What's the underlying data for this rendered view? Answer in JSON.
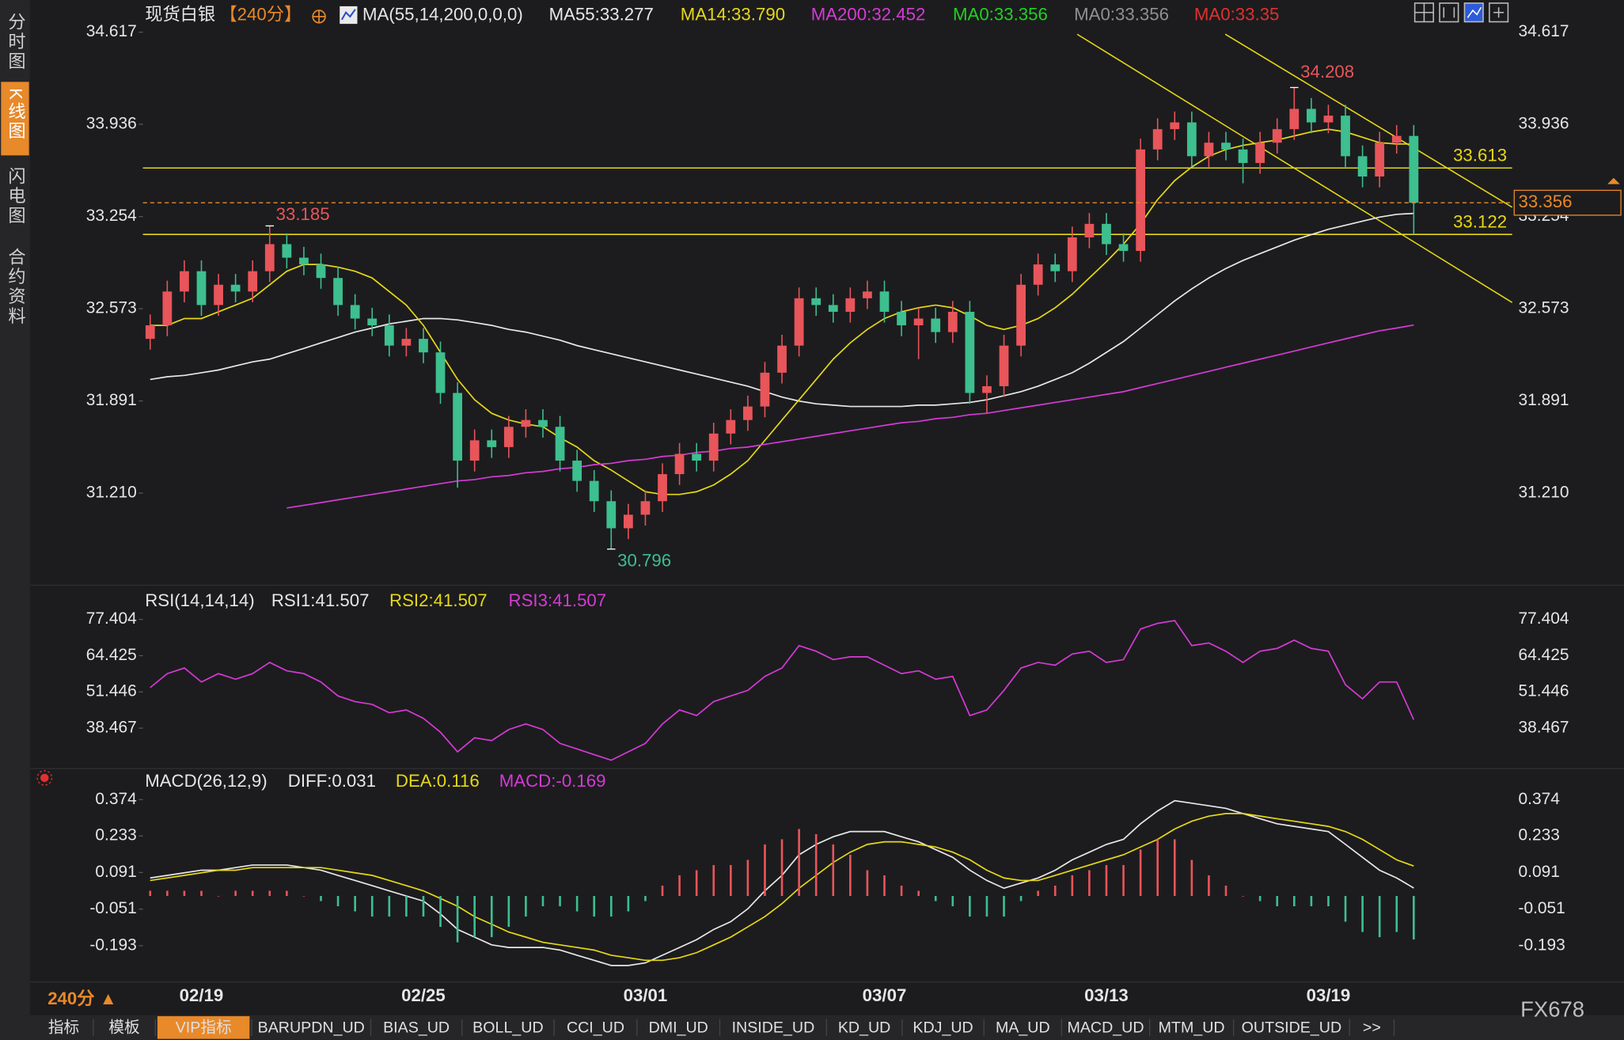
{
  "chart_data": [
    {
      "type": "candlestick",
      "title": "现货白银",
      "period": "【240分】",
      "indicator": "MA(55,14,200,0,0,0)",
      "categories": [
        null,
        null,
        null,
        "02/19",
        null,
        null,
        null,
        null,
        null,
        null,
        null,
        null,
        null,
        null,
        null,
        null,
        "02/25",
        null,
        null,
        null,
        null,
        null,
        null,
        null,
        null,
        null,
        null,
        null,
        null,
        "03/01",
        null,
        null,
        null,
        null,
        null,
        null,
        null,
        null,
        null,
        null,
        null,
        null,
        null,
        "03/07",
        null,
        null,
        null,
        null,
        null,
        null,
        null,
        null,
        null,
        null,
        null,
        null,
        "03/13",
        null,
        null,
        null,
        null,
        null,
        null,
        null,
        null,
        null,
        null,
        null,
        null,
        "03/19",
        null,
        null,
        null,
        null,
        null
      ],
      "open": [
        32.35,
        32.45,
        32.7,
        32.85,
        32.6,
        32.75,
        32.7,
        32.85,
        33.05,
        32.95,
        32.9,
        32.8,
        32.6,
        32.5,
        32.45,
        32.3,
        32.35,
        32.25,
        31.95,
        31.45,
        31.6,
        31.55,
        31.7,
        31.75,
        31.7,
        31.45,
        31.3,
        31.15,
        30.95,
        31.05,
        31.15,
        31.35,
        31.5,
        31.45,
        31.65,
        31.75,
        31.85,
        32.1,
        32.3,
        32.65,
        32.6,
        32.55,
        32.65,
        32.7,
        32.55,
        32.45,
        32.5,
        32.4,
        32.55,
        31.95,
        32.0,
        32.3,
        32.75,
        32.9,
        32.85,
        33.1,
        33.2,
        33.05,
        33.0,
        33.75,
        33.9,
        33.95,
        33.7,
        33.8,
        33.75,
        33.65,
        33.8,
        33.9,
        34.05,
        33.95,
        34.0,
        33.7,
        33.55,
        33.8,
        33.85
      ],
      "high": [
        32.53,
        32.78,
        32.93,
        32.93,
        32.83,
        32.83,
        32.93,
        33.185,
        33.13,
        33.03,
        32.98,
        32.88,
        32.68,
        32.58,
        32.53,
        32.43,
        32.43,
        32.33,
        32.03,
        31.68,
        31.68,
        31.78,
        31.83,
        31.83,
        31.78,
        31.53,
        31.38,
        31.23,
        31.13,
        31.23,
        31.43,
        31.58,
        31.58,
        31.73,
        31.83,
        31.93,
        32.18,
        32.38,
        32.73,
        32.73,
        32.68,
        32.73,
        32.78,
        32.78,
        32.63,
        32.58,
        32.58,
        32.63,
        32.63,
        32.08,
        32.38,
        32.83,
        32.98,
        32.98,
        33.18,
        33.28,
        33.28,
        33.13,
        33.83,
        33.98,
        34.03,
        34.03,
        33.88,
        33.88,
        33.83,
        33.88,
        33.98,
        34.208,
        34.13,
        34.08,
        34.08,
        33.78,
        33.88,
        33.93,
        33.93
      ],
      "low": [
        32.27,
        32.37,
        32.62,
        32.52,
        32.52,
        32.62,
        32.62,
        32.77,
        32.87,
        32.82,
        32.72,
        32.52,
        32.42,
        32.37,
        32.22,
        32.22,
        32.17,
        31.87,
        31.25,
        31.37,
        31.47,
        31.47,
        31.62,
        31.62,
        31.37,
        31.22,
        31.07,
        30.796,
        30.87,
        30.97,
        31.07,
        31.27,
        31.37,
        31.37,
        31.57,
        31.67,
        31.77,
        32.02,
        32.22,
        32.52,
        32.47,
        32.47,
        32.57,
        32.47,
        32.37,
        32.2,
        32.32,
        32.32,
        31.87,
        31.8,
        31.92,
        32.22,
        32.67,
        32.77,
        32.77,
        33.02,
        32.97,
        32.92,
        32.92,
        33.67,
        33.82,
        33.62,
        33.62,
        33.67,
        33.5,
        33.57,
        33.72,
        33.82,
        33.87,
        33.87,
        33.62,
        33.47,
        33.47,
        33.72,
        33.122
      ],
      "close": [
        32.45,
        32.7,
        32.85,
        32.6,
        32.75,
        32.7,
        32.85,
        33.05,
        32.95,
        32.9,
        32.8,
        32.6,
        32.5,
        32.45,
        32.3,
        32.35,
        32.25,
        31.95,
        31.45,
        31.6,
        31.55,
        31.7,
        31.75,
        31.7,
        31.45,
        31.3,
        31.15,
        30.95,
        31.05,
        31.15,
        31.35,
        31.5,
        31.45,
        31.65,
        31.75,
        31.85,
        32.1,
        32.3,
        32.65,
        32.6,
        32.55,
        32.65,
        32.7,
        32.55,
        32.45,
        32.5,
        32.4,
        32.55,
        31.95,
        32.0,
        32.3,
        32.75,
        32.9,
        32.85,
        33.1,
        33.2,
        33.05,
        33.0,
        33.75,
        33.9,
        33.95,
        33.7,
        33.8,
        33.75,
        33.65,
        33.8,
        33.9,
        34.05,
        33.95,
        34.0,
        33.7,
        33.55,
        33.8,
        33.85,
        33.356
      ],
      "up_color": "#e8555a",
      "down_color": "#3dbf8f",
      "series": [
        {
          "name": "MA55:33.277",
          "color": "#e8e8e8",
          "values": [
            32.05,
            32.07,
            32.08,
            32.1,
            32.12,
            32.15,
            32.18,
            32.2,
            32.24,
            32.28,
            32.32,
            32.36,
            32.4,
            32.43,
            32.46,
            32.48,
            32.5,
            32.5,
            32.49,
            32.47,
            32.45,
            32.42,
            32.4,
            32.37,
            32.34,
            32.3,
            32.27,
            32.24,
            32.21,
            32.18,
            32.15,
            32.12,
            32.09,
            32.06,
            32.03,
            32.0,
            31.96,
            31.92,
            31.89,
            31.87,
            31.86,
            31.85,
            31.85,
            31.85,
            31.85,
            31.86,
            31.86,
            31.87,
            31.88,
            31.9,
            31.93,
            31.96,
            32.0,
            32.05,
            32.1,
            32.17,
            32.25,
            32.33,
            32.43,
            32.53,
            32.63,
            32.72,
            32.8,
            32.87,
            32.93,
            32.98,
            33.03,
            33.08,
            33.12,
            33.16,
            33.19,
            33.22,
            33.25,
            33.27,
            33.277
          ]
        },
        {
          "name": "MA14:33.790",
          "color": "#e6d817",
          "values": [
            32.45,
            32.45,
            32.5,
            32.5,
            32.55,
            32.6,
            32.65,
            32.75,
            32.85,
            32.9,
            32.9,
            32.88,
            32.85,
            32.8,
            32.7,
            32.6,
            32.45,
            32.25,
            32.05,
            31.9,
            31.8,
            31.75,
            31.72,
            31.7,
            31.62,
            31.55,
            31.45,
            31.38,
            31.3,
            31.22,
            31.2,
            31.2,
            31.22,
            31.27,
            31.35,
            31.45,
            31.6,
            31.75,
            31.9,
            32.05,
            32.2,
            32.32,
            32.42,
            32.5,
            32.55,
            32.58,
            32.6,
            32.58,
            32.52,
            32.45,
            32.42,
            32.45,
            32.5,
            32.58,
            32.68,
            32.8,
            32.92,
            33.05,
            33.2,
            33.38,
            33.52,
            33.62,
            33.7,
            33.75,
            33.78,
            33.8,
            33.82,
            33.85,
            33.88,
            33.9,
            33.88,
            33.84,
            33.8,
            33.79,
            33.79
          ]
        },
        {
          "name": "MA200:32.452",
          "color": "#d63ad6",
          "values": [
            null,
            null,
            null,
            null,
            null,
            null,
            null,
            null,
            31.1,
            31.12,
            31.14,
            31.16,
            31.18,
            31.2,
            31.22,
            31.24,
            31.26,
            31.28,
            31.3,
            31.31,
            31.33,
            31.34,
            31.36,
            31.37,
            31.39,
            31.4,
            31.42,
            31.43,
            31.45,
            31.46,
            31.48,
            31.49,
            31.51,
            31.52,
            31.54,
            31.55,
            31.57,
            31.59,
            31.61,
            31.63,
            31.65,
            31.67,
            31.69,
            31.71,
            31.73,
            31.74,
            31.76,
            31.77,
            31.79,
            31.8,
            31.82,
            31.84,
            31.86,
            31.88,
            31.9,
            31.92,
            31.94,
            31.96,
            31.99,
            32.02,
            32.05,
            32.08,
            32.11,
            32.14,
            32.17,
            32.2,
            32.23,
            32.26,
            32.29,
            32.32,
            32.35,
            32.38,
            32.41,
            32.43,
            32.452
          ]
        }
      ],
      "legend_extra": [
        {
          "name": "MA0:33.356",
          "color": "#22d022"
        },
        {
          "name": "MA0:33.356",
          "color": "#909090"
        },
        {
          "name": "MA0:33.35",
          "color": "#e03030"
        }
      ],
      "levels": [
        33.613,
        33.122
      ],
      "level_color": "#e6d817",
      "last_color": "#e8892a",
      "ylim": [
        30.567,
        34.663
      ],
      "yticks": [
        34.617,
        33.936,
        33.254,
        32.573,
        31.891,
        {
          "value": 31.21,
          "label": "31.210"
        }
      ]
    },
    {
      "type": "line",
      "title": "RSI(14,14,14)",
      "legend_extra": [
        {
          "name": "RSI1:41.507",
          "color": "#e6e6e6"
        },
        {
          "name": "RSI2:41.507",
          "color": "#e6d817"
        }
      ],
      "series": [
        {
          "name": "RSI3:41.507",
          "color": "#d63ad6",
          "values": [
            53,
            58,
            60,
            55,
            58,
            56,
            58,
            62,
            59,
            58,
            55,
            50,
            48,
            47,
            44,
            45,
            42,
            37,
            30,
            35,
            34,
            38,
            40,
            38,
            33,
            31,
            29,
            27,
            30,
            33,
            40,
            45,
            43,
            48,
            50,
            52,
            57,
            60,
            68,
            66,
            63,
            64,
            64,
            61,
            58,
            59,
            56,
            57,
            43,
            45,
            52,
            60,
            62,
            61,
            65,
            66,
            62,
            63,
            74,
            76,
            77,
            68,
            69,
            66,
            62,
            66,
            67,
            70,
            67,
            66,
            54,
            49,
            55,
            55,
            41.507
          ]
        }
      ],
      "ylim": [
        22.89,
        87.04
      ],
      "yticks": [
        77.404,
        64.425,
        51.446,
        38.467
      ]
    },
    {
      "type": "combo",
      "title": "MACD(26,12,9)",
      "series": [
        {
          "name": "DIFF:0.031",
          "color": "#e8e8e8",
          "values": [
            0.07,
            0.08,
            0.09,
            0.1,
            0.1,
            0.11,
            0.12,
            0.12,
            0.12,
            0.11,
            0.1,
            0.08,
            0.06,
            0.04,
            0.02,
            0.0,
            -0.02,
            -0.07,
            -0.13,
            -0.16,
            -0.19,
            -0.2,
            -0.2,
            -0.2,
            -0.21,
            -0.23,
            -0.25,
            -0.27,
            -0.27,
            -0.26,
            -0.23,
            -0.2,
            -0.17,
            -0.13,
            -0.1,
            -0.05,
            0.02,
            0.08,
            0.16,
            0.2,
            0.23,
            0.25,
            0.25,
            0.25,
            0.23,
            0.21,
            0.18,
            0.15,
            0.1,
            0.06,
            0.03,
            0.05,
            0.07,
            0.1,
            0.14,
            0.17,
            0.2,
            0.22,
            0.28,
            0.33,
            0.37,
            0.36,
            0.35,
            0.34,
            0.32,
            0.3,
            0.28,
            0.27,
            0.26,
            0.25,
            0.2,
            0.15,
            0.1,
            0.07,
            0.031
          ]
        },
        {
          "name": "DEA:0.116",
          "color": "#e6d817",
          "values": [
            0.06,
            0.07,
            0.08,
            0.09,
            0.1,
            0.1,
            0.11,
            0.11,
            0.11,
            0.11,
            0.11,
            0.1,
            0.09,
            0.08,
            0.06,
            0.04,
            0.02,
            -0.01,
            -0.04,
            -0.08,
            -0.11,
            -0.14,
            -0.16,
            -0.18,
            -0.19,
            -0.2,
            -0.21,
            -0.23,
            -0.24,
            -0.25,
            -0.25,
            -0.24,
            -0.22,
            -0.19,
            -0.16,
            -0.12,
            -0.08,
            -0.03,
            0.03,
            0.08,
            0.13,
            0.17,
            0.2,
            0.21,
            0.21,
            0.2,
            0.19,
            0.17,
            0.14,
            0.1,
            0.07,
            0.06,
            0.06,
            0.08,
            0.1,
            0.12,
            0.14,
            0.16,
            0.19,
            0.22,
            0.26,
            0.29,
            0.31,
            0.32,
            0.32,
            0.31,
            0.3,
            0.29,
            0.28,
            0.27,
            0.25,
            0.22,
            0.18,
            0.14,
            0.116
          ]
        },
        {
          "name": "MACD:-0.169",
          "color": "#d63ad6",
          "kind": "bar",
          "up_color": "#e8555a",
          "down_color": "#3dbf8f",
          "values": [
            0.02,
            0.02,
            0.02,
            0.02,
            0,
            0.02,
            0.02,
            0.02,
            0.02,
            0,
            -0.02,
            -0.04,
            -0.06,
            -0.08,
            -0.08,
            -0.08,
            -0.08,
            -0.12,
            -0.18,
            -0.16,
            -0.16,
            -0.12,
            -0.08,
            -0.04,
            -0.04,
            -0.06,
            -0.08,
            -0.08,
            -0.06,
            -0.02,
            0.04,
            0.08,
            0.1,
            0.12,
            0.12,
            0.14,
            0.2,
            0.22,
            0.26,
            0.24,
            0.2,
            0.16,
            0.1,
            0.08,
            0.04,
            0.02,
            -0.02,
            -0.04,
            -0.08,
            -0.08,
            -0.08,
            -0.02,
            0.02,
            0.04,
            0.08,
            0.1,
            0.12,
            0.12,
            0.18,
            0.22,
            0.22,
            0.14,
            0.08,
            0.04,
            0,
            -0.02,
            -0.04,
            -0.04,
            -0.04,
            -0.04,
            -0.1,
            -0.14,
            -0.16,
            -0.14,
            -0.169
          ]
        }
      ],
      "ylim": [
        -0.342,
        0.402
      ],
      "yticks": [
        0.374,
        0.233,
        0.091,
        -0.051,
        -0.193
      ]
    }
  ],
  "sidebar": [
    {
      "label": "分时图",
      "active": false
    },
    {
      "label": "K线图",
      "active": true
    },
    {
      "label": "闪电图",
      "active": false
    },
    {
      "label": "合约资料",
      "active": false
    }
  ],
  "period_switch": "240分 ▲",
  "tabs": [
    {
      "label": "指标",
      "active": false
    },
    {
      "label": "模板",
      "active": false
    },
    {
      "label": "VIP指标",
      "active": true
    },
    {
      "label": "BARUPDN_UD",
      "active": false
    },
    {
      "label": "BIAS_UD",
      "active": false
    },
    {
      "label": "BOLL_UD",
      "active": false
    },
    {
      "label": "CCI_UD",
      "active": false
    },
    {
      "label": "DMI_UD",
      "active": false
    },
    {
      "label": "INSIDE_UD",
      "active": false
    },
    {
      "label": "KD_UD",
      "active": false
    },
    {
      "label": "KDJ_UD",
      "active": false
    },
    {
      "label": "MA_UD",
      "active": false
    },
    {
      "label": "MACD_UD",
      "active": false
    },
    {
      "label": "MTM_UD",
      "active": false
    },
    {
      "label": "OUTSIDE_UD",
      "active": false
    },
    {
      "label": ">>",
      "active": false
    }
  ],
  "watermark": "FX678"
}
